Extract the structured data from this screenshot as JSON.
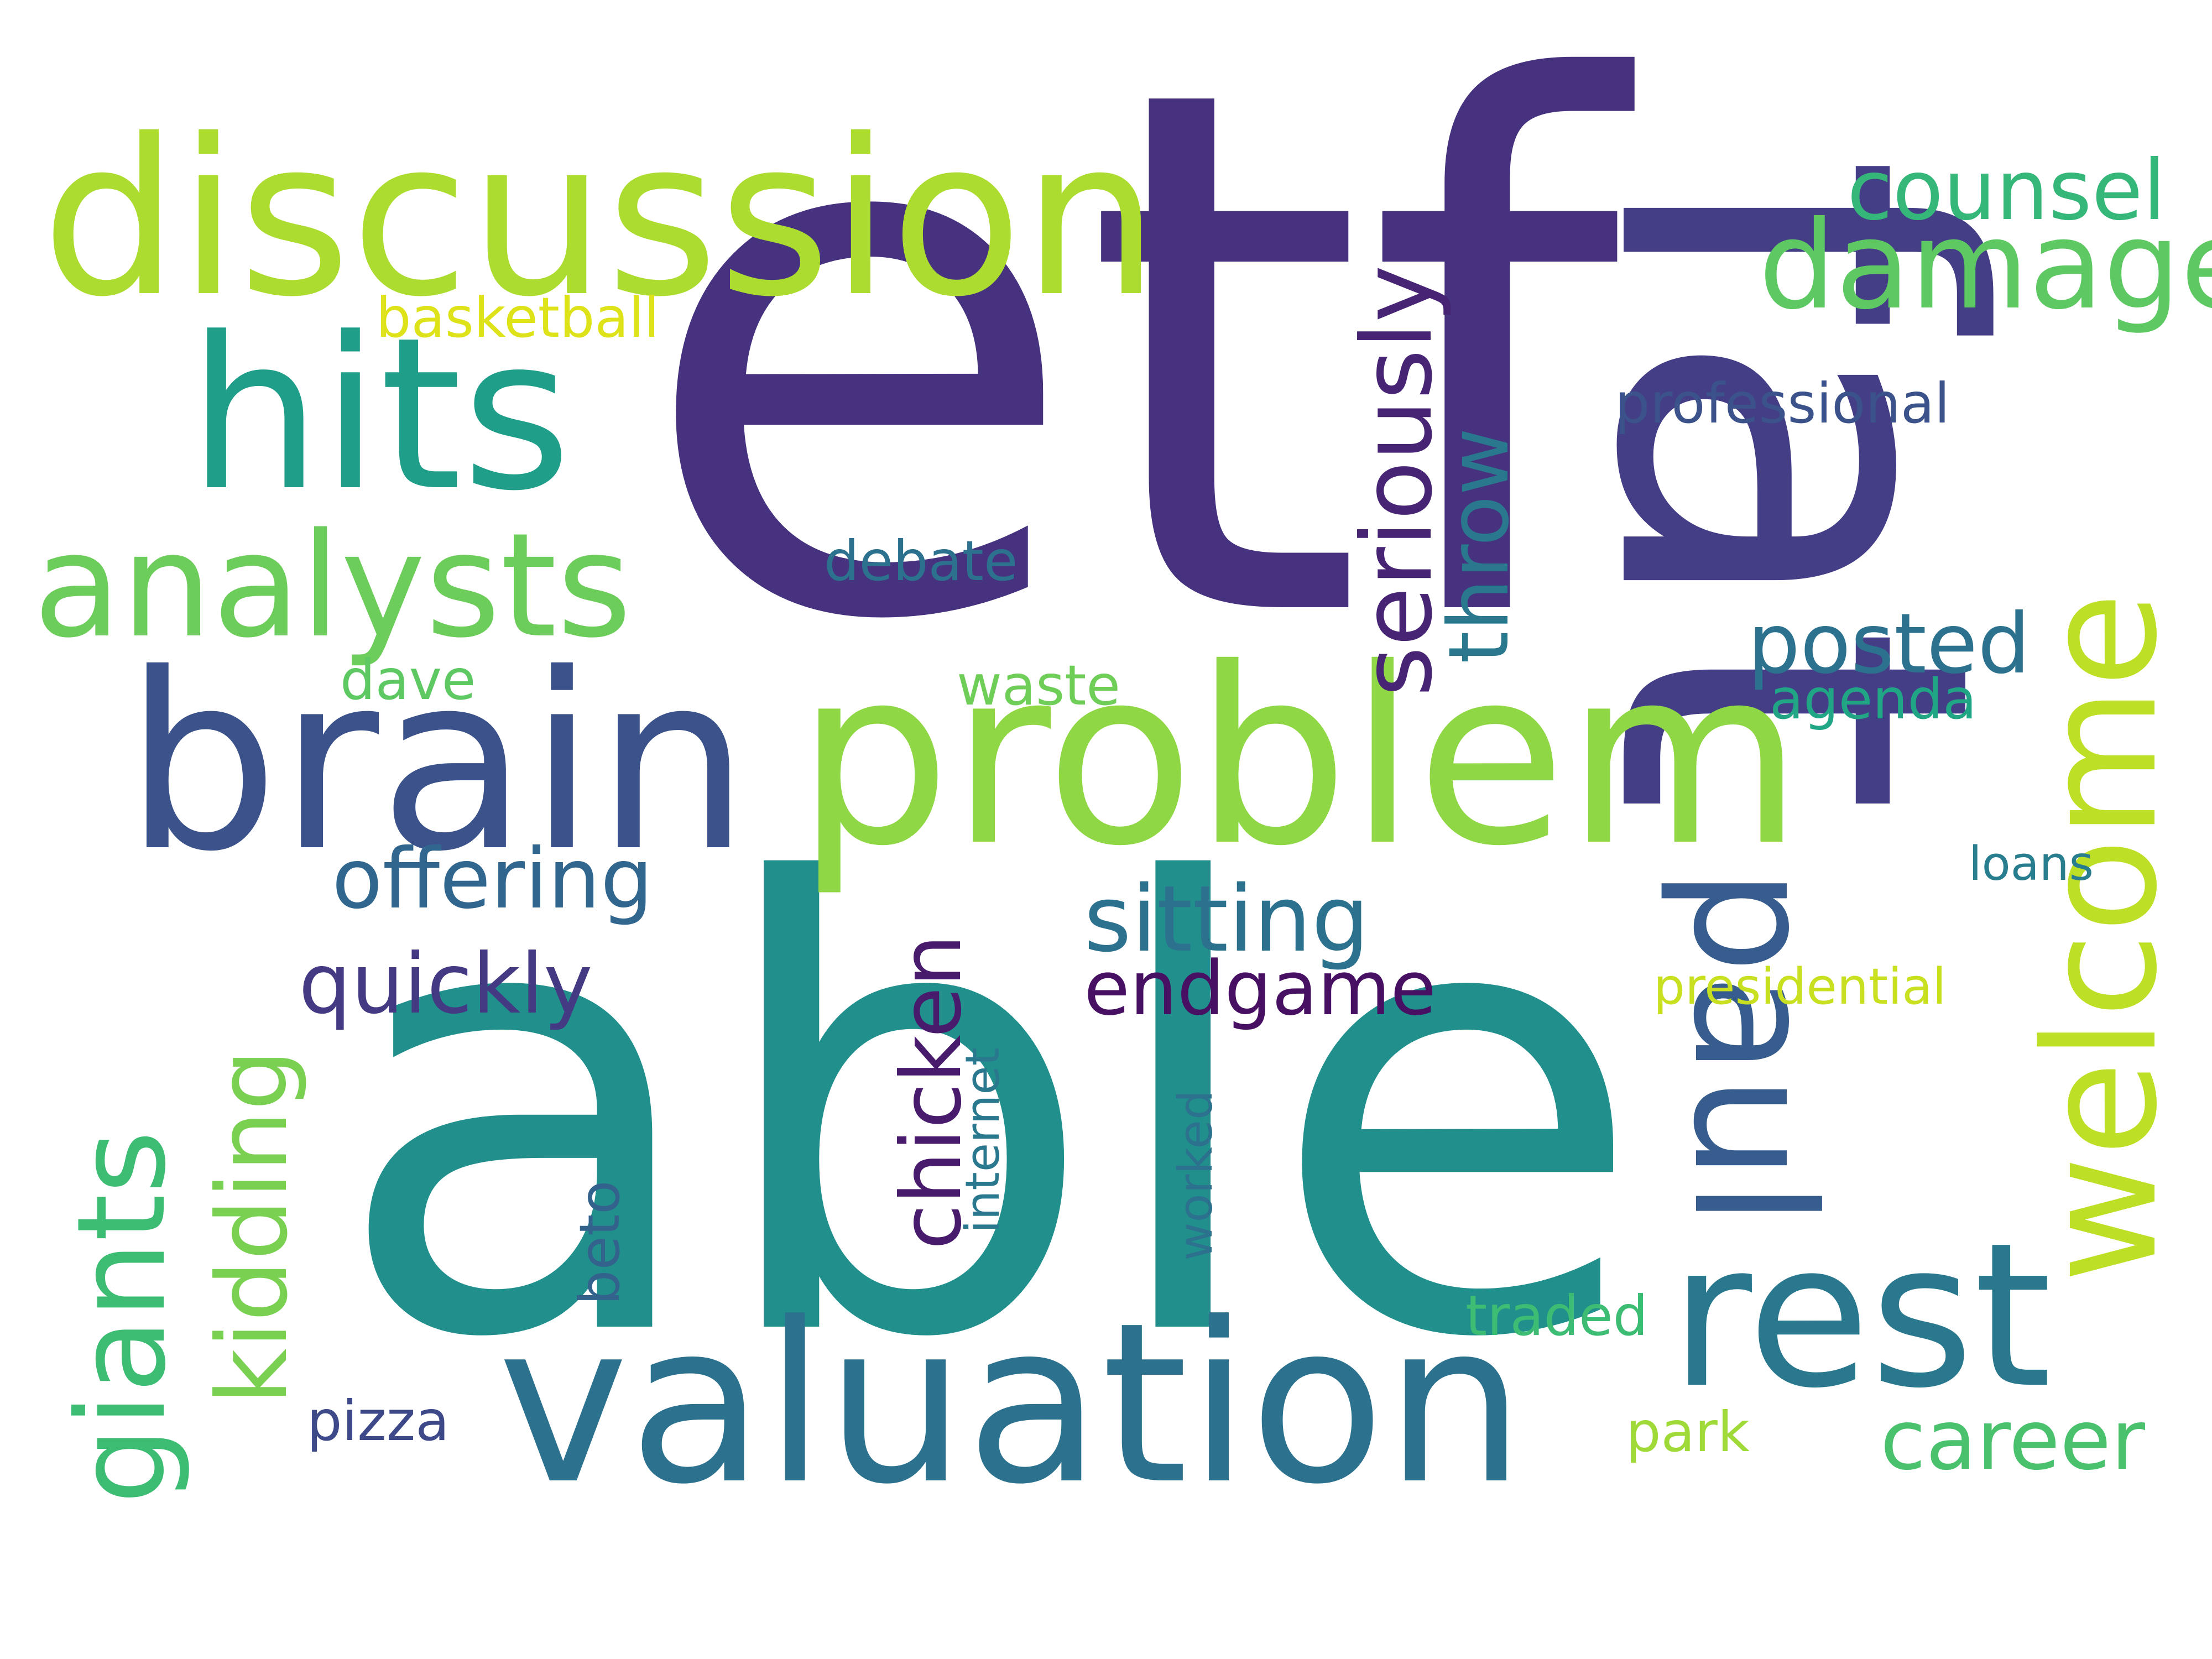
{
  "words": [
    {
      "text": "etf",
      "color": "#46327e"
    },
    {
      "text": "able",
      "color": "#21908d"
    },
    {
      "text": "fat",
      "color": "#433e85"
    },
    {
      "text": "problem",
      "color": "#8fd744"
    },
    {
      "text": "discussion",
      "color": "#addc30"
    },
    {
      "text": "brain",
      "color": "#3b528b"
    },
    {
      "text": "valuation",
      "color": "#2c728e"
    },
    {
      "text": "welcome",
      "color": "#bddf26"
    },
    {
      "text": "hits",
      "color": "#1f9e89"
    },
    {
      "text": "paul",
      "color": "#365d8d"
    },
    {
      "text": "rest",
      "color": "#2a788e"
    },
    {
      "text": "analysts",
      "color": "#6ccd5a"
    },
    {
      "text": "giants",
      "color": "#3dbc74"
    },
    {
      "text": "damage",
      "color": "#5ec962"
    },
    {
      "text": "seriously",
      "color": "#482475"
    },
    {
      "text": "kidding",
      "color": "#7ad151"
    },
    {
      "text": "counsel",
      "color": "#35b779"
    },
    {
      "text": "chicken",
      "color": "#481b6d"
    },
    {
      "text": "throw",
      "color": "#2a788e"
    },
    {
      "text": "sitting",
      "color": "#2c728e"
    },
    {
      "text": "offering",
      "color": "#31668e"
    },
    {
      "text": "quickly",
      "color": "#443983"
    },
    {
      "text": "endgame",
      "color": "#471063"
    },
    {
      "text": "career",
      "color": "#4ac16d"
    },
    {
      "text": "posted",
      "color": "#2c728e"
    },
    {
      "text": "professional",
      "color": "#3b528b"
    },
    {
      "text": "basketball",
      "color": "#dde318"
    },
    {
      "text": "debate",
      "color": "#2c728e"
    },
    {
      "text": "agenda",
      "color": "#21a685"
    },
    {
      "text": "dave",
      "color": "#5ec962"
    },
    {
      "text": "waste",
      "color": "#6ece58"
    },
    {
      "text": "loans",
      "color": "#287d8e"
    },
    {
      "text": "presidential",
      "color": "#c8e020"
    },
    {
      "text": "internet",
      "color": "#2a788e"
    },
    {
      "text": "worked",
      "color": "#2c728e"
    },
    {
      "text": "beto",
      "color": "#33638d"
    },
    {
      "text": "traded",
      "color": "#3dbc74"
    },
    {
      "text": "pizza",
      "color": "#3e4989"
    },
    {
      "text": "park",
      "color": "#a0da39"
    }
  ]
}
